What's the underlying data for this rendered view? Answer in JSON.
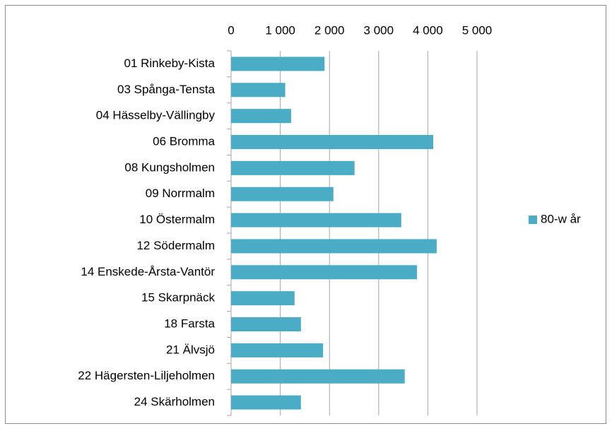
{
  "chart_data": {
    "type": "barh",
    "categories": [
      "01 Rinkeby-Kista",
      "03 Spånga-Tensta",
      "04 Hässelby-Vällingby",
      "06 Bromma",
      "08 Kungsholmen",
      "09 Norrmalm",
      "10 Östermalm",
      "12 Södermalm",
      "14 Enskede-Årsta-Vantör",
      "15 Skarpnäck",
      "18 Farsta",
      "21 Älvsjö",
      "22 Hägersten-Liljeholmen",
      "24 Skärholmen"
    ],
    "series": [
      {
        "name": "80-w år",
        "color": "#4bacc6",
        "values": [
          1900,
          1100,
          1220,
          4110,
          2510,
          2080,
          3460,
          4180,
          3780,
          1290,
          1420,
          1870,
          3530,
          1420
        ]
      }
    ],
    "xlim": [
      0,
      5000
    ],
    "xticks": [
      0,
      {
        "value": 1000,
        "label": "1 000"
      },
      {
        "value": 2000,
        "label": "2 000"
      },
      {
        "value": 3000,
        "label": "3 000"
      },
      {
        "value": 4000,
        "label": "4 000"
      },
      {
        "value": 5000,
        "label": "5 000"
      }
    ],
    "grid": true,
    "legend": "right"
  }
}
